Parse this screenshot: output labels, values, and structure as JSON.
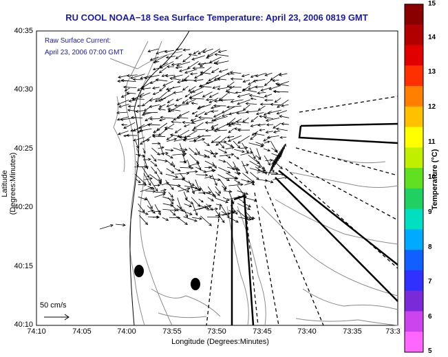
{
  "title": "RU COOL  NOAA−18  Sea Surface Temperature:  April 23, 2006 0819 GMT",
  "legend": {
    "line1": "Raw Surface Current:",
    "line2": "April 23, 2006 07:00 GMT"
  },
  "axes": {
    "xlabel": "Longitude (Degrees:Minutes)",
    "ylabel": "Latitude (Degrees:Minutes)",
    "xticks": [
      "74:10",
      "74:05",
      "74:00",
      "73:55",
      "73:50",
      "73:45",
      "73:40",
      "73:35",
      "73:3"
    ],
    "yticks": [
      "40:35",
      "40:30",
      "40:25",
      "40:20",
      "40:15",
      "40:10"
    ]
  },
  "scale_arrow": {
    "label": "50 cm/s"
  },
  "colorbar": {
    "label": "Temperature (°C)",
    "ticks": [
      "15",
      "14",
      "13",
      "12",
      "11",
      "10",
      "9",
      "8",
      "7",
      "6",
      "5"
    ],
    "colors": [
      "#ff66ff",
      "#cc44ee",
      "#7a2ad6",
      "#3030ff",
      "#1060ff",
      "#00aaff",
      "#00e0c0",
      "#20d060",
      "#60e020",
      "#c0f000",
      "#ffff00",
      "#ffc000",
      "#ff8000",
      "#ff3000",
      "#e00000",
      "#b00000",
      "#8a0000"
    ]
  }
}
